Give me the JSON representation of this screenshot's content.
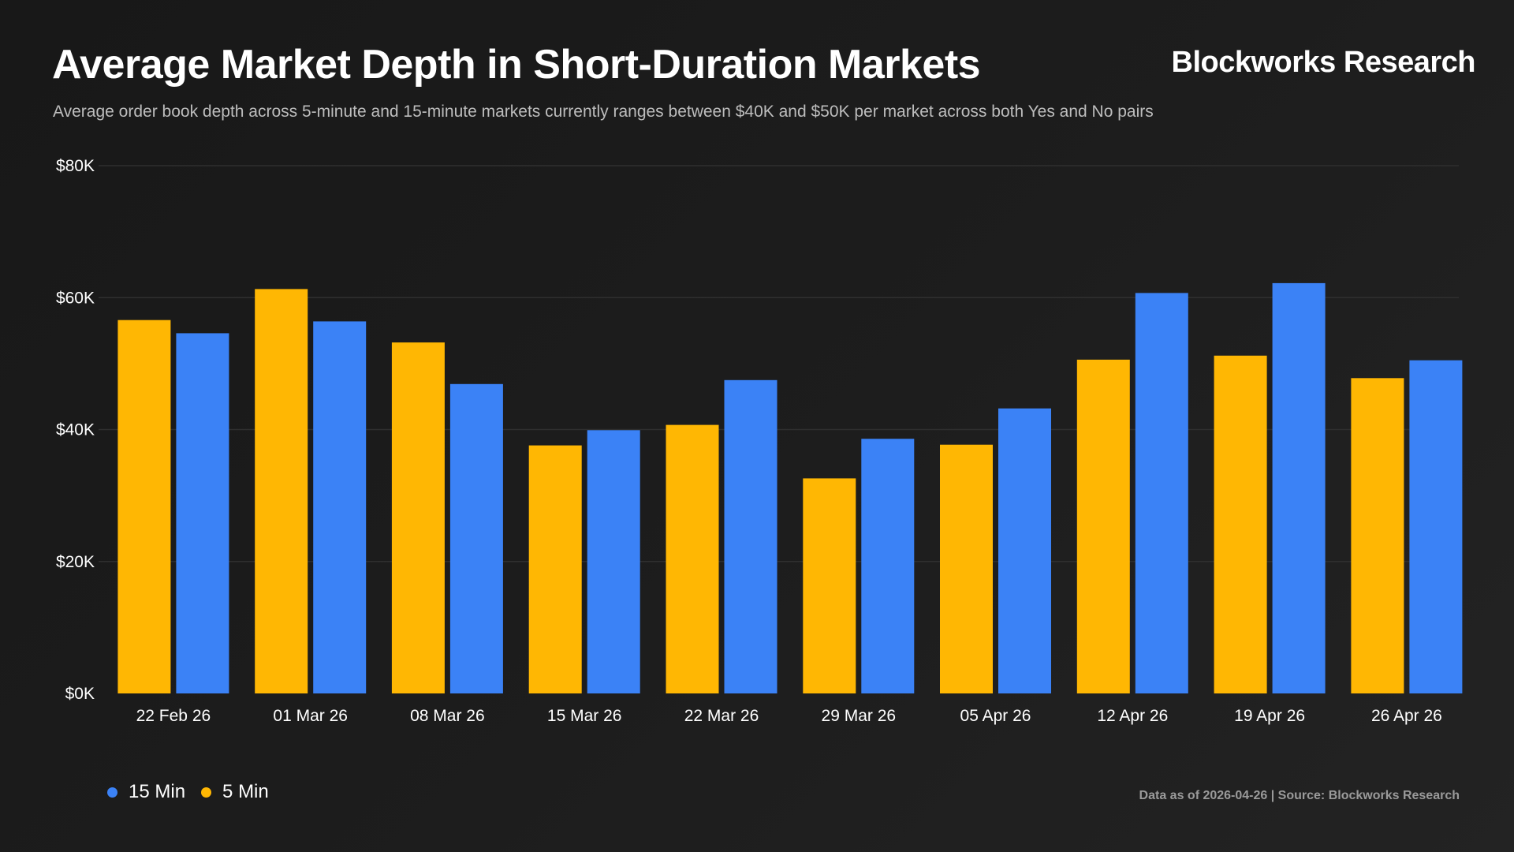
{
  "header": {
    "title": "Average Market Depth in Short-Duration Markets",
    "subtitle": "Average order book depth across 5-minute and 15-minute markets currently ranges between $40K and $50K per market across both Yes and No pairs",
    "brand": "Blockworks Research"
  },
  "footer": {
    "note": "Data as of 2026-04-26 | Source: Blockworks Research"
  },
  "legend": {
    "items": [
      {
        "label": "15 Min",
        "color": "#3b82f6"
      },
      {
        "label": "5 Min",
        "color": "#ffb703"
      }
    ]
  },
  "chart_data": {
    "type": "bar",
    "categories": [
      "22 Feb 26",
      "01 Mar 26",
      "08 Mar 26",
      "15 Mar 26",
      "22 Mar 26",
      "29 Mar 26",
      "05 Apr 26",
      "12 Apr 26",
      "19 Apr 26",
      "26 Apr 26"
    ],
    "series": [
      {
        "name": "5 Min",
        "color": "#ffb703",
        "values": [
          56600,
          61300,
          53200,
          37600,
          40700,
          32600,
          37700,
          50600,
          51200,
          47800
        ]
      },
      {
        "name": "15 Min",
        "color": "#3b82f6",
        "values": [
          54600,
          56400,
          46900,
          39900,
          47500,
          38600,
          43200,
          60700,
          62200,
          50500
        ]
      }
    ],
    "y_ticks": [
      "$0K",
      "$20K",
      "$40K",
      "$60K",
      "$80K"
    ],
    "ylim": [
      0,
      80000
    ],
    "grid": true,
    "legend_position": "bottom-left"
  }
}
